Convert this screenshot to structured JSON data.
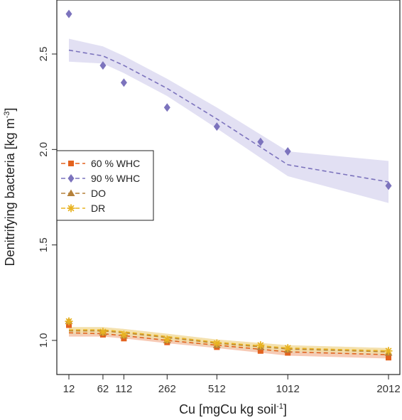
{
  "chart_data": {
    "type": "line",
    "xlabel": "Cu [mgCu kg soil",
    "xlabel_sup": "-1",
    "xlabel_end": "]",
    "ylabel": "Denitrifying bacteria [kg m",
    "ylabel_sup": "-3",
    "ylabel_end": "]",
    "x_tick_labels": [
      "12",
      "62",
      "112",
      "262",
      "512",
      "1012",
      "2012"
    ],
    "x_ticks": [
      12,
      62,
      112,
      262,
      512,
      1012,
      2012
    ],
    "x_scale": "sqrt",
    "y_ticks": [
      1.0,
      1.5,
      2.0,
      2.5
    ],
    "y_tick_labels": [
      "1.0",
      "1.5",
      "2.0",
      "2.5"
    ],
    "ylim": [
      0.89,
      2.78
    ],
    "xlim": [
      12,
      2012
    ],
    "legend_position": "left",
    "series": [
      {
        "name": "60 % WHC",
        "color": "#e3621e",
        "band_color": "#f4b89c",
        "marker": "square",
        "points_x": [
          12,
          62,
          112,
          262,
          512,
          800,
          1012,
          2012
        ],
        "points_y": [
          1.08,
          1.03,
          1.01,
          0.99,
          0.965,
          0.945,
          0.935,
          0.91
        ],
        "fit_x": [
          12,
          62,
          112,
          262,
          512,
          1012,
          2012
        ],
        "fit_y": [
          1.04,
          1.035,
          1.025,
          1.0,
          0.975,
          0.94,
          0.925
        ],
        "band_lo": [
          1.02,
          1.02,
          1.01,
          0.985,
          0.96,
          0.92,
          0.905
        ],
        "band_hi": [
          1.06,
          1.055,
          1.045,
          1.02,
          0.99,
          0.96,
          0.945
        ]
      },
      {
        "name": "90 % WHC",
        "color": "#7c73bd",
        "band_color": "#d8d6ef",
        "marker": "diamond",
        "points_x": [
          12,
          62,
          112,
          262,
          512,
          800,
          1012,
          2012
        ],
        "points_y": [
          2.71,
          2.44,
          2.35,
          2.22,
          2.12,
          2.04,
          1.99,
          1.81
        ],
        "fit_x": [
          12,
          62,
          112,
          262,
          512,
          1012,
          2012
        ],
        "fit_y": [
          2.52,
          2.49,
          2.44,
          2.32,
          2.16,
          1.92,
          1.83
        ],
        "band_lo": [
          2.46,
          2.45,
          2.4,
          2.28,
          2.11,
          1.86,
          1.72
        ],
        "band_hi": [
          2.58,
          2.54,
          2.49,
          2.37,
          2.22,
          1.99,
          1.94
        ]
      },
      {
        "name": "DO",
        "color": "#b5813a",
        "band_color": "#e8d6b5",
        "marker": "triangle",
        "points_x": [
          12,
          62,
          112,
          262,
          512,
          800,
          1012,
          2012
        ],
        "points_y": [
          1.1,
          1.04,
          1.025,
          1.0,
          0.975,
          0.965,
          0.95,
          0.935
        ],
        "fit_x": [
          12,
          62,
          112,
          262,
          512,
          1012,
          2012
        ],
        "fit_y": [
          1.05,
          1.05,
          1.04,
          1.015,
          0.985,
          0.955,
          0.94
        ],
        "band_lo": [
          1.03,
          1.03,
          1.02,
          0.995,
          0.965,
          0.935,
          0.92
        ],
        "band_hi": [
          1.07,
          1.07,
          1.06,
          1.035,
          1.005,
          0.975,
          0.96
        ]
      },
      {
        "name": "DR",
        "color": "#e8b322",
        "band_color": "#f5e2a6",
        "marker": "asterisk",
        "points_x": [
          12,
          62,
          112,
          262,
          512,
          800,
          1012,
          2012
        ],
        "points_y": [
          1.1,
          1.045,
          1.03,
          1.005,
          0.985,
          0.975,
          0.96,
          0.945
        ],
        "fit_x": [
          12,
          62,
          112,
          262,
          512,
          1012,
          2012
        ],
        "fit_y": [
          1.055,
          1.055,
          1.045,
          1.02,
          0.99,
          0.96,
          0.945
        ],
        "band_lo": [
          1.04,
          1.04,
          1.03,
          1.005,
          0.975,
          0.945,
          0.93
        ],
        "band_hi": [
          1.07,
          1.07,
          1.06,
          1.035,
          1.005,
          0.975,
          0.96
        ]
      }
    ]
  }
}
